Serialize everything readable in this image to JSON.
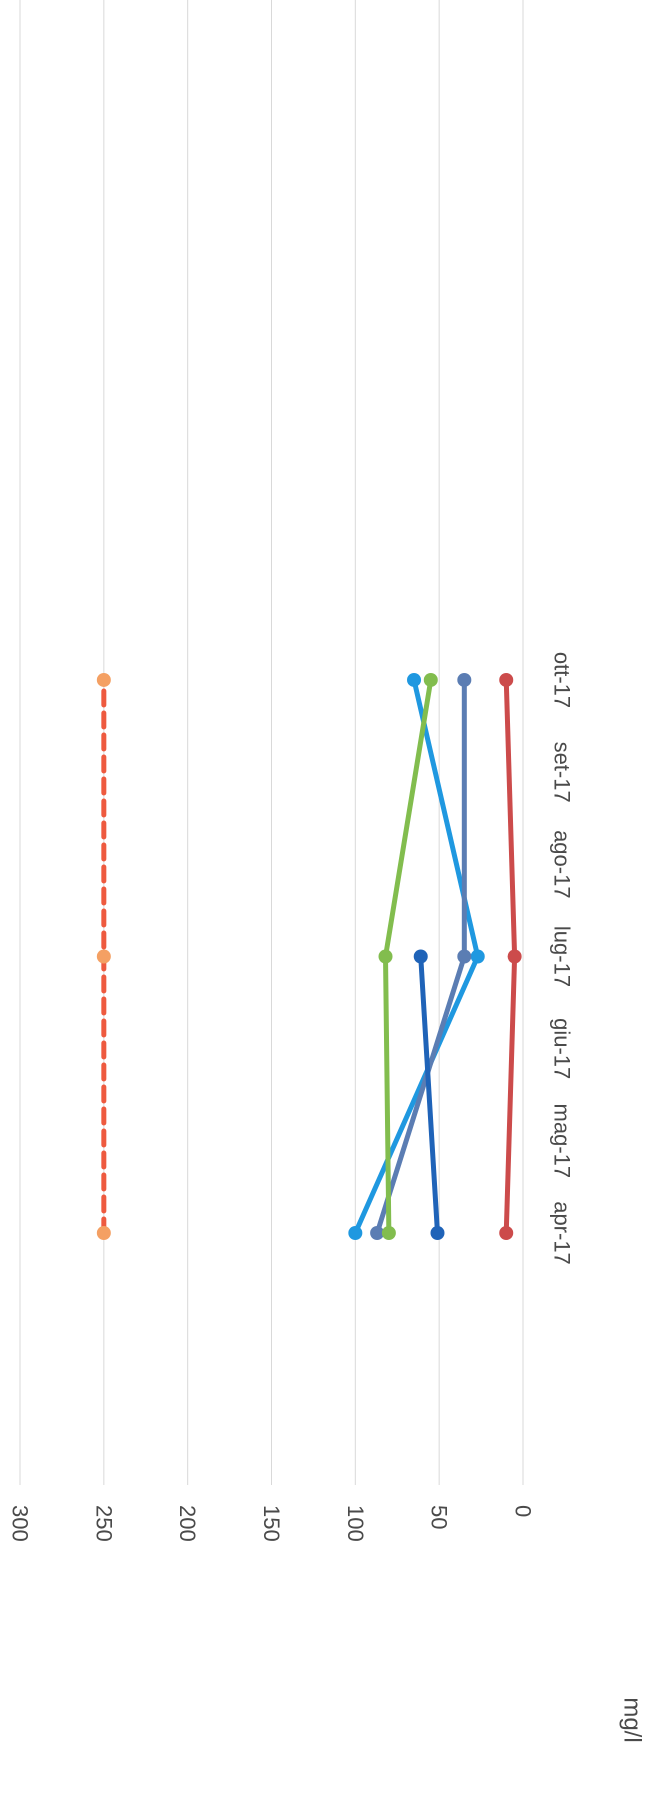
{
  "chart_data": {
    "type": "line",
    "orientation": "rotated-90-clockwise",
    "title": "",
    "xlabel": "",
    "ylabel": "mg/l",
    "ylim": [
      0,
      300
    ],
    "yticks": [
      0,
      50,
      100,
      150,
      200,
      250,
      300
    ],
    "categories": [
      "apr-17",
      "mag-17",
      "giu-17",
      "lug-17",
      "ago-17",
      "set-17",
      "ott-17"
    ],
    "grid": true,
    "legend": "none",
    "series": [
      {
        "color": "#f4a063",
        "dash": true,
        "line_color": "#ee5a3f",
        "values": [
          250,
          null,
          null,
          250,
          null,
          null,
          250
        ]
      },
      {
        "color": "#1f98e0",
        "dash": false,
        "values": [
          100,
          null,
          null,
          27,
          null,
          null,
          65
        ]
      },
      {
        "color": "#5b7db3",
        "dash": false,
        "values": [
          87,
          null,
          null,
          35,
          null,
          null,
          35
        ]
      },
      {
        "color": "#82bd4e",
        "dash": false,
        "values": [
          80,
          null,
          null,
          82,
          null,
          null,
          55
        ]
      },
      {
        "color": "#1f63b8",
        "dash": false,
        "values": [
          51,
          null,
          null,
          61,
          null,
          null,
          null
        ]
      },
      {
        "color": "#cc4b4b",
        "dash": false,
        "values": [
          10,
          null,
          null,
          5,
          null,
          null,
          10
        ]
      }
    ]
  }
}
